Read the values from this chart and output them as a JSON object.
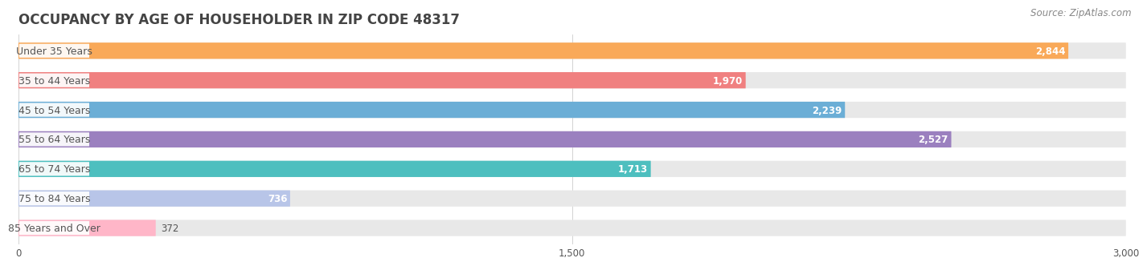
{
  "title": "OCCUPANCY BY AGE OF HOUSEHOLDER IN ZIP CODE 48317",
  "source": "Source: ZipAtlas.com",
  "categories": [
    "Under 35 Years",
    "35 to 44 Years",
    "45 to 54 Years",
    "55 to 64 Years",
    "65 to 74 Years",
    "75 to 84 Years",
    "85 Years and Over"
  ],
  "values": [
    2844,
    1970,
    2239,
    2527,
    1713,
    736,
    372
  ],
  "bar_colors": [
    "#F9A959",
    "#F08080",
    "#6BAED6",
    "#9B80BF",
    "#4DBFBF",
    "#B8C5E8",
    "#FFB6C8"
  ],
  "bar_bg_color": "#E8E8E8",
  "xlim_max": 3000,
  "xticks": [
    0,
    1500,
    3000
  ],
  "title_fontsize": 12,
  "label_fontsize": 9,
  "value_fontsize": 8.5,
  "source_fontsize": 8.5,
  "bar_height": 0.55,
  "bar_gap": 1.0,
  "background_color": "#FFFFFF",
  "title_color": "#444444",
  "text_dark": "#555555",
  "value_color_inside": "#FFFFFF",
  "label_pill_color": "#FFFFFF",
  "label_pill_alpha": 0.92
}
